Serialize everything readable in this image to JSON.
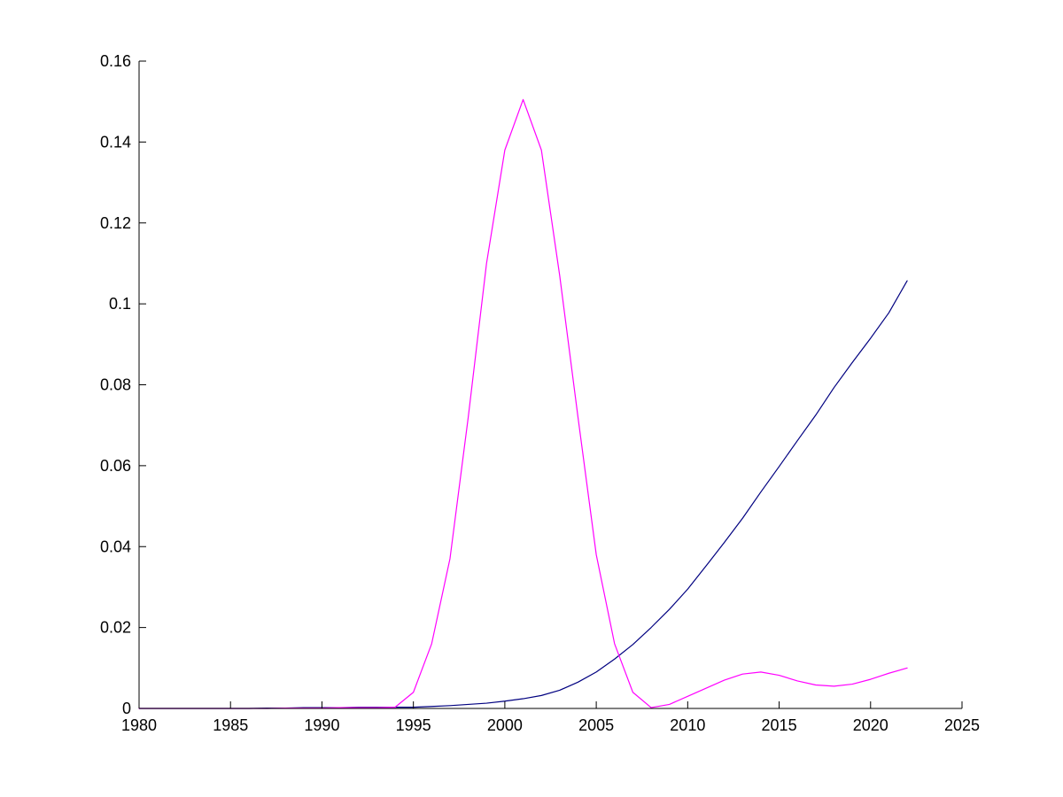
{
  "chart_data": {
    "type": "line",
    "title": "",
    "xlabel": "",
    "ylabel": "",
    "xlim": [
      1980,
      2025
    ],
    "ylim": [
      0,
      0.16
    ],
    "grid": false,
    "x_ticks": [
      1980,
      1985,
      1990,
      1995,
      2000,
      2005,
      2010,
      2015,
      2020,
      2025
    ],
    "y_ticks": [
      0,
      0.02,
      0.04,
      0.06,
      0.08,
      0.1,
      0.12,
      0.14,
      0.16
    ],
    "x_tick_labels": [
      "1980",
      "1985",
      "1990",
      "1995",
      "2000",
      "2005",
      "2010",
      "2015",
      "2020",
      "2025"
    ],
    "y_tick_labels": [
      "0",
      "0.02",
      "0.04",
      "0.06",
      "0.08",
      "0.1",
      "0.12",
      "0.14",
      "0.16"
    ],
    "series": [
      {
        "color": "#000080",
        "x": [
          1980,
          1981,
          1982,
          1983,
          1984,
          1985,
          1986,
          1987,
          1988,
          1989,
          1990,
          1991,
          1992,
          1993,
          1994,
          1995,
          1996,
          1997,
          1998,
          1999,
          2000,
          2001,
          2002,
          2003,
          2004,
          2005,
          2006,
          2007,
          2008,
          2009,
          2010,
          2011,
          2012,
          2013,
          2014,
          2015,
          2016,
          2017,
          2018,
          2019,
          2020,
          2021,
          2022
        ],
        "y": [
          0,
          0,
          0,
          0,
          0,
          0,
          0,
          0.0001,
          0.0001,
          0.0002,
          0.0002,
          0.0002,
          0.0003,
          0.0003,
          0.0003,
          0.0003,
          0.0005,
          0.0007,
          0.001,
          0.0013,
          0.0018,
          0.0024,
          0.0032,
          0.0045,
          0.0065,
          0.009,
          0.0122,
          0.0158,
          0.02,
          0.0245,
          0.0295,
          0.0352,
          0.041,
          0.047,
          0.0535,
          0.0598,
          0.0662,
          0.0725,
          0.0793,
          0.0855,
          0.0915,
          0.0978,
          0.1057
        ]
      },
      {
        "color": "#ff00ff",
        "x": [
          1980,
          1981,
          1982,
          1983,
          1984,
          1985,
          1986,
          1987,
          1988,
          1989,
          1990,
          1991,
          1992,
          1993,
          1994,
          1995,
          1996,
          1997,
          1998,
          1999,
          2000,
          2001,
          2002,
          2003,
          2004,
          2005,
          2006,
          2007,
          2008,
          2009,
          2010,
          2011,
          2012,
          2013,
          2014,
          2015,
          2016,
          2017,
          2018,
          2019,
          2020,
          2021,
          2022
        ],
        "y": [
          0,
          0,
          0,
          0,
          0,
          0,
          0,
          0,
          0.0001,
          0.0001,
          0.0001,
          0.0002,
          0.0002,
          0.0002,
          0.0003,
          0.004,
          0.016,
          0.037,
          0.072,
          0.11,
          0.138,
          0.1505,
          0.138,
          0.107,
          0.072,
          0.038,
          0.016,
          0.004,
          0.0002,
          0.001,
          0.003,
          0.005,
          0.007,
          0.0085,
          0.009,
          0.0082,
          0.0068,
          0.0058,
          0.0055,
          0.006,
          0.0072,
          0.0087,
          0.01
        ]
      }
    ]
  }
}
